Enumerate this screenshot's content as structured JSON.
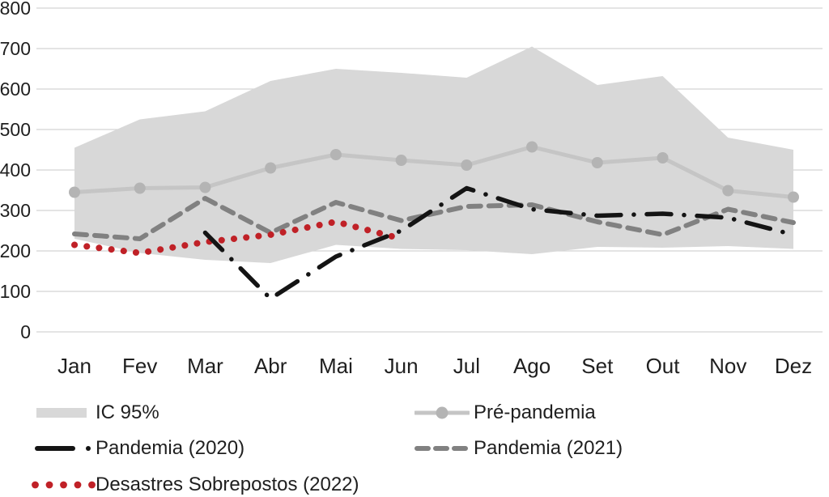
{
  "chart_data": {
    "type": "line",
    "title": "",
    "xlabel": "",
    "ylabel": "",
    "x_categories": [
      "Jan",
      "Fev",
      "Mar",
      "Abr",
      "Mai",
      "Jun",
      "Jul",
      "Ago",
      "Set",
      "Out",
      "Nov",
      "Dez"
    ],
    "y_ticks": [
      0,
      100,
      200,
      300,
      400,
      500,
      600,
      700,
      800
    ],
    "ylim": [
      0,
      800
    ],
    "grid": true,
    "legend_position": "bottom",
    "band": {
      "name": "IC 95%",
      "color": "#d8d8d8",
      "upper": [
        455,
        525,
        545,
        620,
        650,
        640,
        628,
        705,
        610,
        632,
        480,
        450
      ],
      "lower": [
        230,
        195,
        178,
        170,
        215,
        205,
        202,
        192,
        210,
        208,
        212,
        205
      ]
    },
    "series": [
      {
        "name": "Pré-pandemia",
        "style": "solid-markers",
        "color": "#c5c5c5",
        "marker_color": "#b4b4b4",
        "values": [
          345,
          355,
          357,
          405,
          438,
          424,
          412,
          457,
          418,
          430,
          349,
          333
        ]
      },
      {
        "name": "Pandemia (2020)",
        "style": "dash-dot",
        "color": "#141414",
        "values": [
          null,
          null,
          245,
          82,
          186,
          250,
          355,
          303,
          287,
          292,
          282,
          240
        ]
      },
      {
        "name": "Pandemia (2021)",
        "style": "dashed",
        "color": "#818181",
        "values": [
          242,
          230,
          330,
          245,
          320,
          275,
          310,
          314,
          272,
          240,
          303,
          270
        ]
      },
      {
        "name": "Desastres Sobrepostos (2022)",
        "style": "dotted",
        "color": "#c02127",
        "values": [
          215,
          195,
          222,
          240,
          272,
          230,
          null,
          null,
          null,
          null,
          null,
          null
        ]
      }
    ]
  }
}
